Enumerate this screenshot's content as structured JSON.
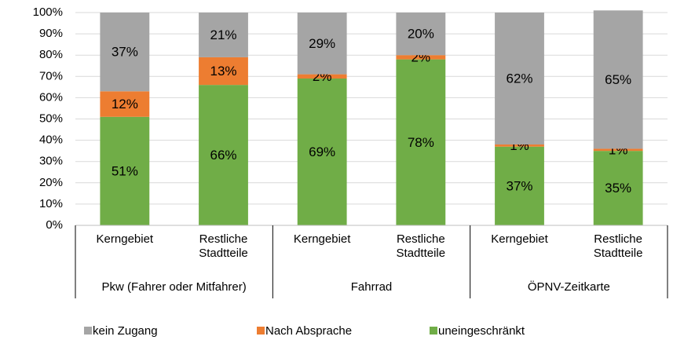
{
  "chart_data": {
    "type": "stacked_bar",
    "categories": [
      "Kerngebiet",
      "Restliche Stadtteile",
      "Kerngebiet",
      "Restliche Stadtteile",
      "Kerngebiet",
      "Restliche Stadtteile"
    ],
    "groups": [
      {
        "label": "Pkw (Fahrer oder Mitfahrer)",
        "size": 2
      },
      {
        "label": "Fahrrad",
        "size": 2
      },
      {
        "label": "ÖPNV-Zeitkarte",
        "size": 2
      }
    ],
    "series": [
      {
        "name": "uneingeschränkt",
        "color": "#70ad47",
        "values": [
          51,
          66,
          69,
          78,
          37,
          35
        ],
        "value_labels": [
          "51%",
          "66%",
          "69%",
          "78%",
          "37%",
          "35%"
        ]
      },
      {
        "name": "Nach Absprache",
        "color": "#ed7d31",
        "values": [
          12,
          13,
          2,
          2,
          1,
          1
        ],
        "value_labels": [
          "12%",
          "13%",
          "2%",
          "2%",
          "1%",
          "1%"
        ]
      },
      {
        "name": "kein Zugang",
        "color": "#a5a5a5",
        "values": [
          37,
          21,
          29,
          20,
          62,
          65
        ],
        "value_labels": [
          "37%",
          "21%",
          "29%",
          "20%",
          "62%",
          "65%"
        ]
      }
    ],
    "ylim": [
      0,
      100
    ],
    "yticks": [
      {
        "value": 0,
        "label": "0%"
      },
      {
        "value": 10,
        "label": "10%"
      },
      {
        "value": 20,
        "label": "20%"
      },
      {
        "value": 30,
        "label": "30%"
      },
      {
        "value": 40,
        "label": "40%"
      },
      {
        "value": 50,
        "label": "50%"
      },
      {
        "value": 60,
        "label": "60%"
      },
      {
        "value": 70,
        "label": "70%"
      },
      {
        "value": 80,
        "label": "80%"
      },
      {
        "value": 90,
        "label": "90%"
      },
      {
        "value": 100,
        "label": "100%"
      }
    ],
    "grid": true
  }
}
